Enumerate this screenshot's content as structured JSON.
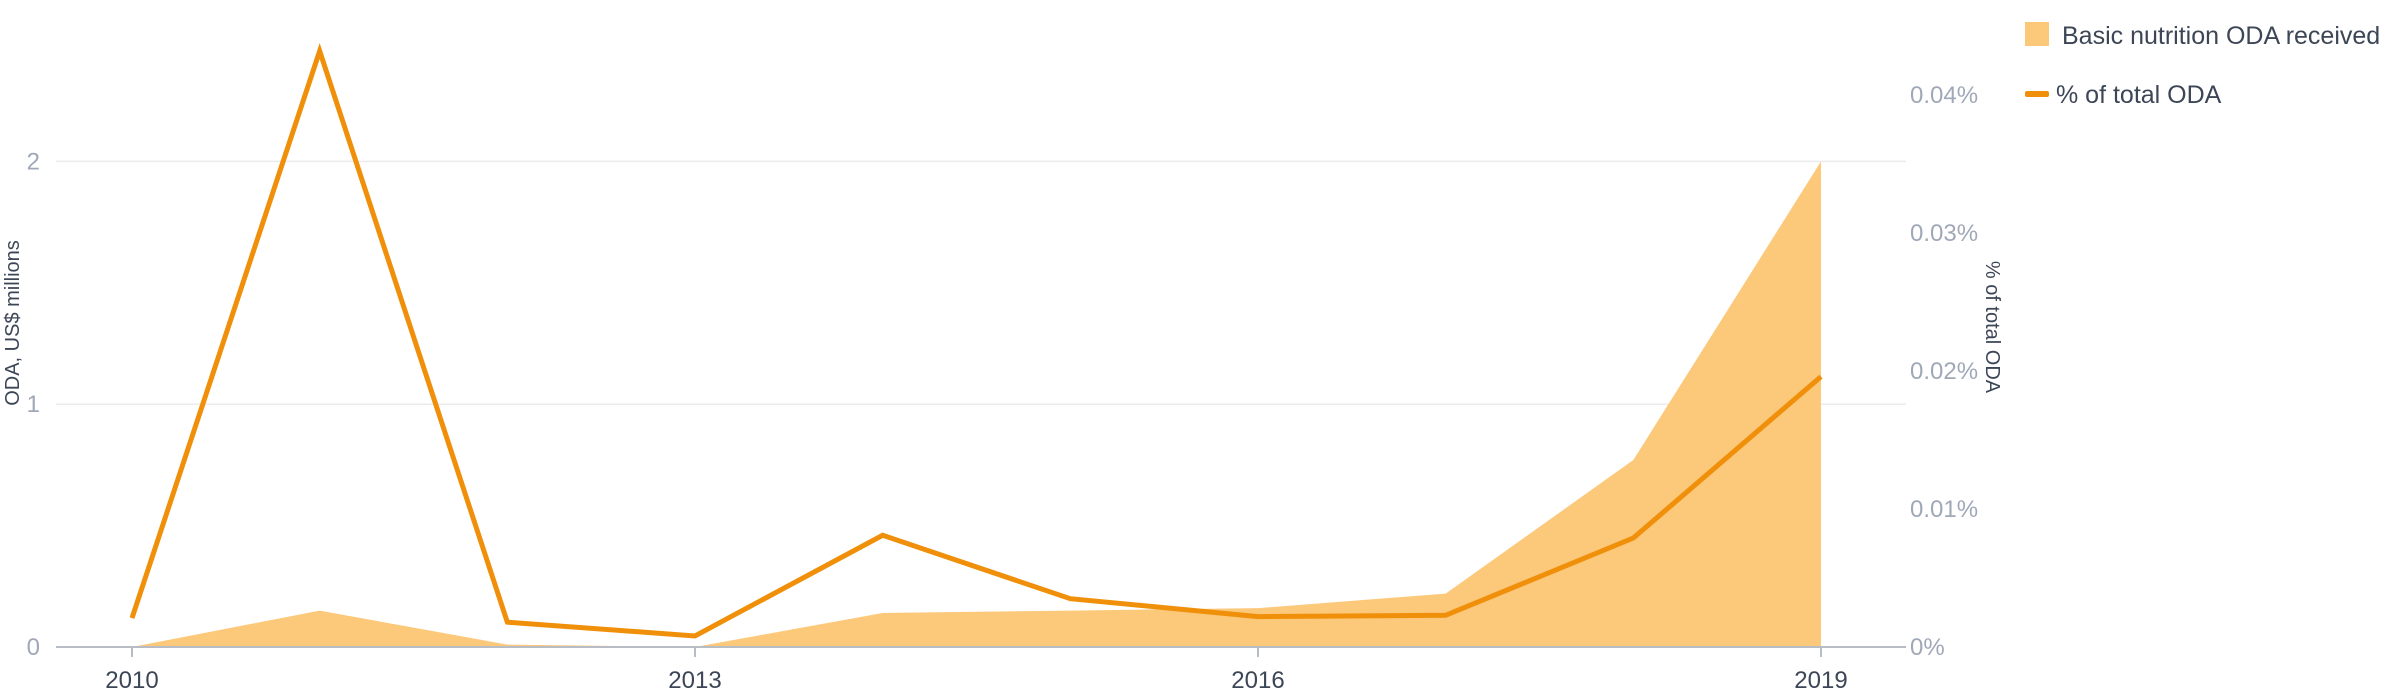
{
  "chart_data": {
    "type": "area+line",
    "x": [
      2010,
      2011,
      2012,
      2013,
      2014,
      2015,
      2016,
      2017,
      2018,
      2019
    ],
    "xticks": [
      2010,
      2013,
      2016,
      2019
    ],
    "series": [
      {
        "name": "Basic nutrition ODA received",
        "type": "area",
        "axis": "left",
        "values": [
          0.0,
          0.15,
          0.01,
          0.0,
          0.14,
          0.15,
          0.16,
          0.22,
          0.77,
          2.0
        ]
      },
      {
        "name": "% of total ODA",
        "type": "line",
        "axis": "right",
        "values": [
          0.0021,
          0.0432,
          0.0018,
          0.0008,
          0.0081,
          0.0035,
          0.0022,
          0.0023,
          0.0079,
          0.0196
        ]
      }
    ],
    "ylabel": "ODA, US$ millions",
    "ylim": [
      0,
      2.5
    ],
    "yticks": [
      0,
      1,
      2
    ],
    "ytick_labels": [
      "0",
      "1",
      "2"
    ],
    "y2label": "% of total ODA",
    "y2lim": [
      0,
      0.044
    ],
    "y2ticks": [
      0,
      0.01,
      0.02,
      0.03,
      0.04
    ],
    "y2tick_labels": [
      "0%",
      "0.01%",
      "0.02%",
      "0.03%",
      "0.04%"
    ],
    "grid": true,
    "legend": "top-right",
    "colors": {
      "area": "#fcc87a",
      "line": "#f0900a",
      "grid": "#ebebeb",
      "axis": "#b8bcc4",
      "tick_muted": "#a0a8b8",
      "text": "#3c4656"
    }
  }
}
